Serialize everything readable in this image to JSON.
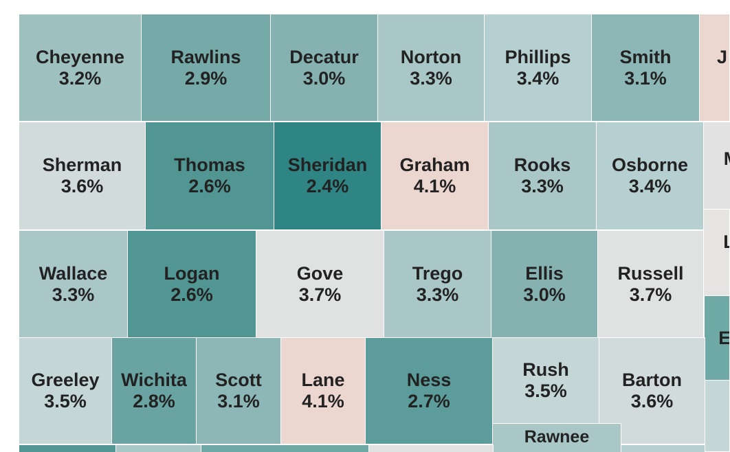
{
  "colors": {
    "low": "#2f8583",
    "mid_low": "#6fa9a6",
    "mid": "#a8c6c6",
    "neutral": "#e0e1e1",
    "high": "#ecd6d0"
  },
  "counties": [
    {
      "name": "Cheyenne",
      "value": "3.2%",
      "color": "#9ec0bf"
    },
    {
      "name": "Rawlins",
      "value": "2.9%",
      "color": "#76aaa8"
    },
    {
      "name": "Decatur",
      "value": "3.0%",
      "color": "#85b2b1"
    },
    {
      "name": "Norton",
      "value": "3.3%",
      "color": "#aac7c7"
    },
    {
      "name": "Phillips",
      "value": "3.4%",
      "color": "#b6cfd0"
    },
    {
      "name": "Smith",
      "value": "3.1%",
      "color": "#8db7b6"
    },
    {
      "name": "",
      "value": "",
      "label": "J",
      "color": "#ecd6d0"
    },
    {
      "name": "Sherman",
      "value": "3.6%",
      "color": "#d2dbdc"
    },
    {
      "name": "Thomas",
      "value": "2.6%",
      "color": "#519693"
    },
    {
      "name": "Sheridan",
      "value": "2.4%",
      "color": "#2f8583"
    },
    {
      "name": "Graham",
      "value": "4.1%",
      "color": "#ecd6d0"
    },
    {
      "name": "Rooks",
      "value": "3.3%",
      "color": "#aac7c7"
    },
    {
      "name": "Osborne",
      "value": "3.4%",
      "color": "#b6cfd0"
    },
    {
      "name": "",
      "value": "",
      "label": "M",
      "color": "#e2e2e2"
    },
    {
      "name": "Wallace",
      "value": "3.3%",
      "color": "#aac7c7"
    },
    {
      "name": "Logan",
      "value": "2.6%",
      "color": "#519693"
    },
    {
      "name": "Gove",
      "value": "3.7%",
      "color": "#e0e1e1"
    },
    {
      "name": "Trego",
      "value": "3.3%",
      "color": "#aac7c7"
    },
    {
      "name": "Ellis",
      "value": "3.0%",
      "color": "#85b2b1"
    },
    {
      "name": "Russell",
      "value": "3.7%",
      "color": "#e0e1e1"
    },
    {
      "name": "",
      "value": "",
      "label": "L",
      "color": "#e6e4e3"
    },
    {
      "name": "",
      "value": "",
      "label": "El",
      "color": "#6fa9a6"
    },
    {
      "name": "Greeley",
      "value": "3.5%",
      "color": "#c4d6d6"
    },
    {
      "name": "Wichita",
      "value": "2.8%",
      "color": "#69a4a2"
    },
    {
      "name": "Scott",
      "value": "3.1%",
      "color": "#8db7b6"
    },
    {
      "name": "Lane",
      "value": "4.1%",
      "color": "#ecd6d0"
    },
    {
      "name": "Ness",
      "value": "2.7%",
      "color": "#5c9d9b"
    },
    {
      "name": "Rush",
      "value": "3.5%",
      "color": "#c4d6d6"
    },
    {
      "name": "Barton",
      "value": "3.6%",
      "color": "#d2dbdc"
    },
    {
      "name": "",
      "value": "",
      "label": "",
      "color": "#c4d6d6"
    },
    {
      "name": "Rawnee",
      "value": "",
      "color": "#aac7c7"
    },
    {
      "name": "",
      "value": "",
      "label": "",
      "color": "#519693"
    },
    {
      "name": "",
      "value": "",
      "label": "",
      "color": "#aac7c7"
    },
    {
      "name": "",
      "value": "",
      "label": "",
      "color": "#6fa9a6"
    },
    {
      "name": "",
      "value": "",
      "label": "",
      "color": "#e0e1e1"
    },
    {
      "name": "",
      "value": "",
      "label": "",
      "color": "#b6cfd0"
    }
  ]
}
